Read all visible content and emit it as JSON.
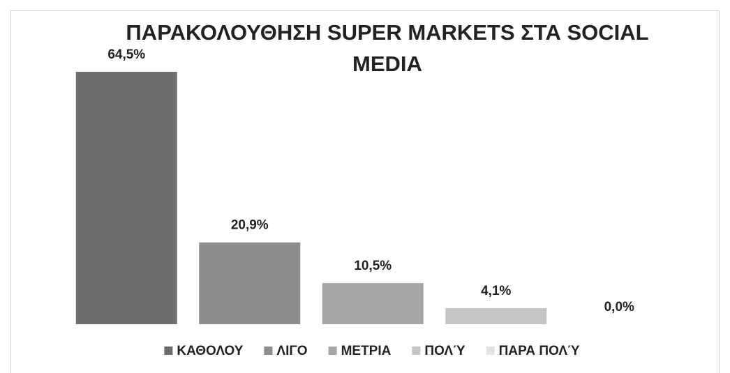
{
  "chart_data": {
    "type": "bar",
    "title": "ΠΑΡΑΚΟΛΟΥΘΗΣΗ SUPER MARKETS ΣΤΑ SOCIAL MEDIA",
    "categories": [
      "ΚΑΘΟΛΟΥ",
      "ΛΙΓΟ",
      "ΜΕΤΡΙΑ",
      "ΠΟΛΎ",
      "ΠΑΡΑ ΠΟΛΎ"
    ],
    "values": [
      64.5,
      20.9,
      10.5,
      4.1,
      0.0
    ],
    "value_labels": [
      "64,5%",
      "20,9%",
      "10,5%",
      "4,1%",
      "0,0%"
    ],
    "colors": [
      "#6e6e6e",
      "#8d8d8d",
      "#a7a7a7",
      "#c5c5c5",
      "#e2e2e2"
    ],
    "legend": "bottom"
  }
}
